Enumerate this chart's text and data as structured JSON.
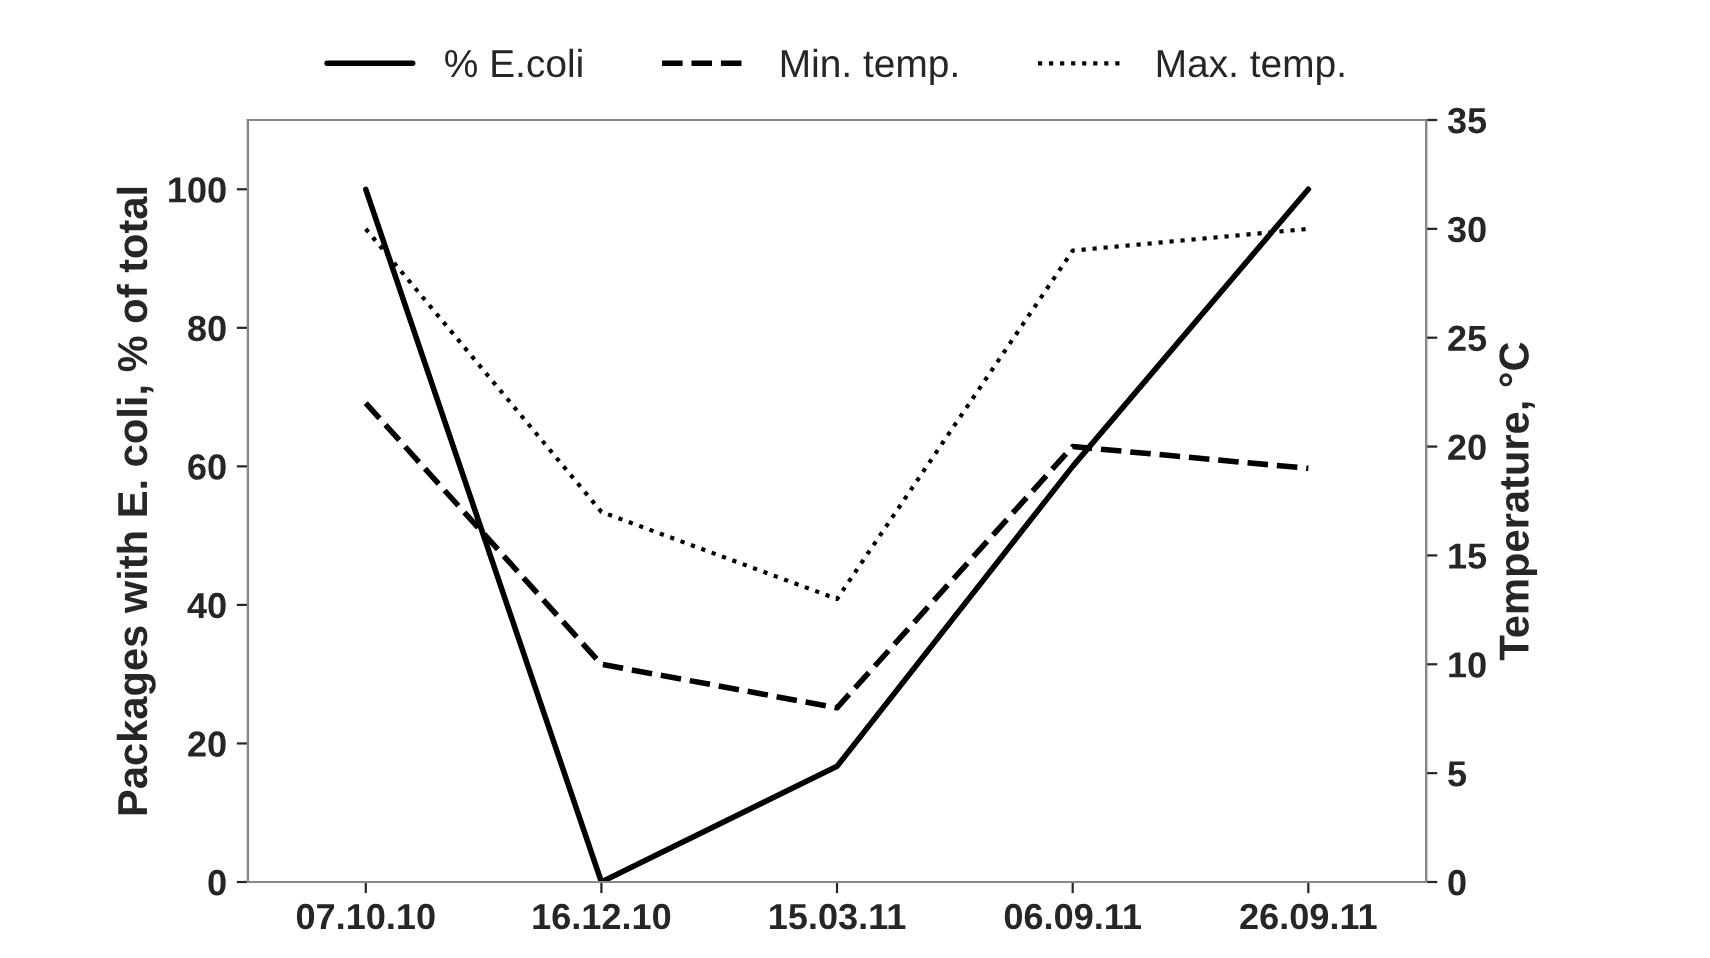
{
  "chart_data": {
    "type": "line",
    "categories": [
      "07.10.10",
      "16.12.10",
      "15.03.11",
      "06.09.11",
      "26.09.11"
    ],
    "ylabel": "Packages with E. coli, % of total",
    "y2label": "Temperature, °C",
    "series": [
      {
        "name": "% E.coli",
        "color": "#000000",
        "line_style": "solid",
        "values": [
          100,
          0,
          16.7,
          60,
          100
        ]
      },
      {
        "name": "Min. temp.",
        "color": "#000000",
        "line_style": "dashed",
        "axis": "y2",
        "values": [
          22,
          10,
          8,
          20,
          19
        ]
      },
      {
        "name": "Max. temp.",
        "color": "#000000",
        "line_style": "dotted",
        "axis": "y2",
        "values": [
          30,
          17,
          13,
          29,
          30
        ]
      }
    ],
    "ylim": [
      0,
      110
    ],
    "yticks": [
      0,
      20,
      40,
      60,
      80,
      100
    ],
    "y2lim": [
      0,
      35
    ],
    "y2ticks": [
      0,
      5,
      10,
      15,
      20,
      25,
      30,
      35
    ],
    "legend": "top",
    "grid": false,
    "marker": "none"
  }
}
